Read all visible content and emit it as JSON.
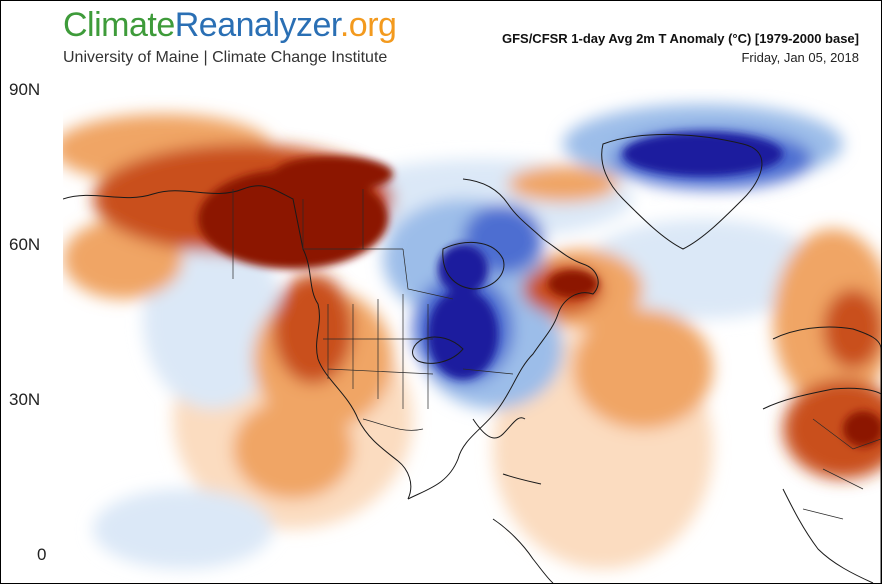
{
  "header": {
    "logo": {
      "part1": "Climate",
      "part2": "Reanalyzer",
      "part3": ".org"
    },
    "subtitle": "University of Maine | Climate Change Institute",
    "title": "GFS/CFSR 1-day Avg 2m T Anomaly (°C) [1979-2000 base]",
    "date": "Friday, Jan 05, 2018"
  },
  "axis": {
    "lat_labels": [
      "90N",
      "60N",
      "30N",
      "0"
    ]
  },
  "colors": {
    "warm_strong": "#8c1206",
    "warm_medium": "#c9501a",
    "warm_light": "#f0a565",
    "warm_pale": "#fbdcc0",
    "neutral": "#ffffff",
    "cold_pale": "#dbe8f7",
    "cold_light": "#9cbde9",
    "cold_medium": "#4d6ed1",
    "cold_strong": "#1e1d9e",
    "brand_green": "#3e9b3a",
    "brand_blue": "#2a6fb4",
    "brand_orange": "#f39a1e"
  }
}
